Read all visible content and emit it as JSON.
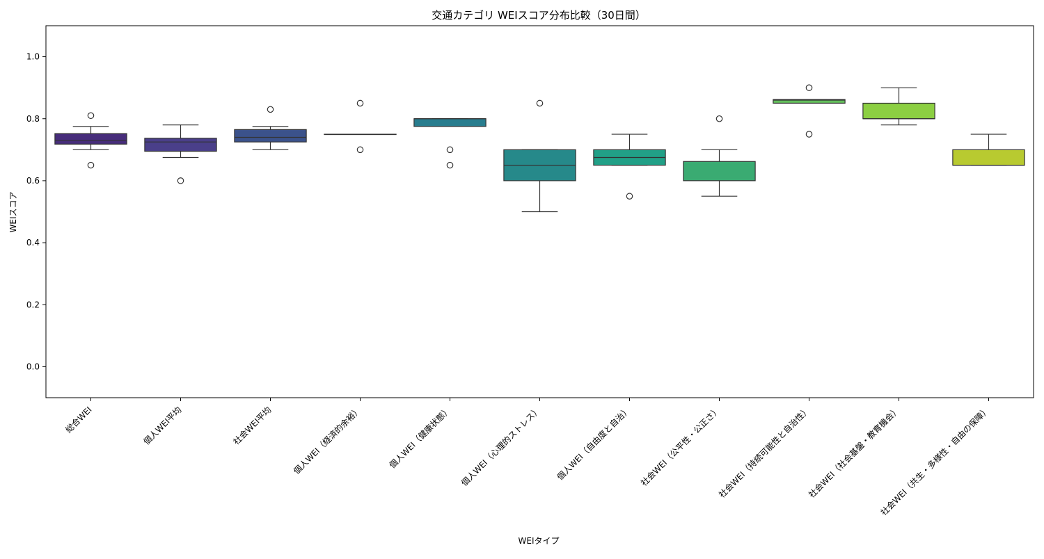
{
  "chart_data": {
    "type": "box",
    "title": "交通カテゴリ WEIスコア分布比較（30日間）",
    "xlabel": "WEIタイプ",
    "ylabel": "WEIスコア",
    "ylim": [
      -0.1,
      1.1
    ],
    "yticks": [
      0.0,
      0.2,
      0.4,
      0.6,
      0.8,
      1.0
    ],
    "ytick_labels": [
      "0.0",
      "0.2",
      "0.4",
      "0.6",
      "0.8",
      "1.0"
    ],
    "grid": false,
    "legend": "none",
    "categories": [
      "総合WEI",
      "個人WEI平均",
      "社会WEI平均",
      "個人WEI（経済的余裕）",
      "個人WEI（健康状態）",
      "個人WEI（心理的ストレス）",
      "個人WEI（自由度と自治）",
      "社会WEI（公平性・公正さ）",
      "社会WEI（持続可能性と自治性）",
      "社会WEI（社会基盤・教育機会）",
      "社会WEI（共生・多様性・自由の保障）"
    ],
    "boxes": [
      {
        "whisker_low": 0.7,
        "q1": 0.718,
        "median": 0.73,
        "q3": 0.752,
        "whisker_high": 0.775,
        "outliers": [
          0.81,
          0.65
        ],
        "color": "#472d7b"
      },
      {
        "whisker_low": 0.675,
        "q1": 0.695,
        "median": 0.725,
        "q3": 0.737,
        "whisker_high": 0.78,
        "outliers": [
          0.6
        ],
        "color": "#4a3f8a"
      },
      {
        "whisker_low": 0.7,
        "q1": 0.725,
        "median": 0.74,
        "q3": 0.765,
        "whisker_high": 0.775,
        "outliers": [
          0.83
        ],
        "color": "#3b528b"
      },
      {
        "whisker_low": 0.75,
        "q1": 0.75,
        "median": 0.75,
        "q3": 0.75,
        "whisker_high": 0.75,
        "outliers": [
          0.85,
          0.7
        ],
        "color": "#31688e"
      },
      {
        "whisker_low": 0.775,
        "q1": 0.775,
        "median": 0.8,
        "q3": 0.8,
        "whisker_high": 0.8,
        "outliers": [
          0.7,
          0.65
        ],
        "color": "#287d8e"
      },
      {
        "whisker_low": 0.5,
        "q1": 0.6,
        "median": 0.65,
        "q3": 0.7,
        "whisker_high": 0.7,
        "outliers": [
          0.85
        ],
        "color": "#26898a"
      },
      {
        "whisker_low": 0.65,
        "q1": 0.65,
        "median": 0.675,
        "q3": 0.7,
        "whisker_high": 0.75,
        "outliers": [
          0.55
        ],
        "color": "#21a087"
      },
      {
        "whisker_low": 0.55,
        "q1": 0.6,
        "median": 0.6,
        "q3": 0.662,
        "whisker_high": 0.7,
        "outliers": [
          0.8
        ],
        "color": "#3aab72"
      },
      {
        "whisker_low": 0.85,
        "q1": 0.85,
        "median": 0.86,
        "q3": 0.862,
        "whisker_high": 0.862,
        "outliers": [
          0.9,
          0.75
        ],
        "color": "#63be5b"
      },
      {
        "whisker_low": 0.78,
        "q1": 0.8,
        "median": 0.8,
        "q3": 0.85,
        "whisker_high": 0.9,
        "outliers": [],
        "color": "#8ccf42"
      },
      {
        "whisker_low": 0.65,
        "q1": 0.65,
        "median": 0.65,
        "q3": 0.7,
        "whisker_high": 0.75,
        "outliers": [],
        "color": "#b8ca30"
      }
    ]
  }
}
